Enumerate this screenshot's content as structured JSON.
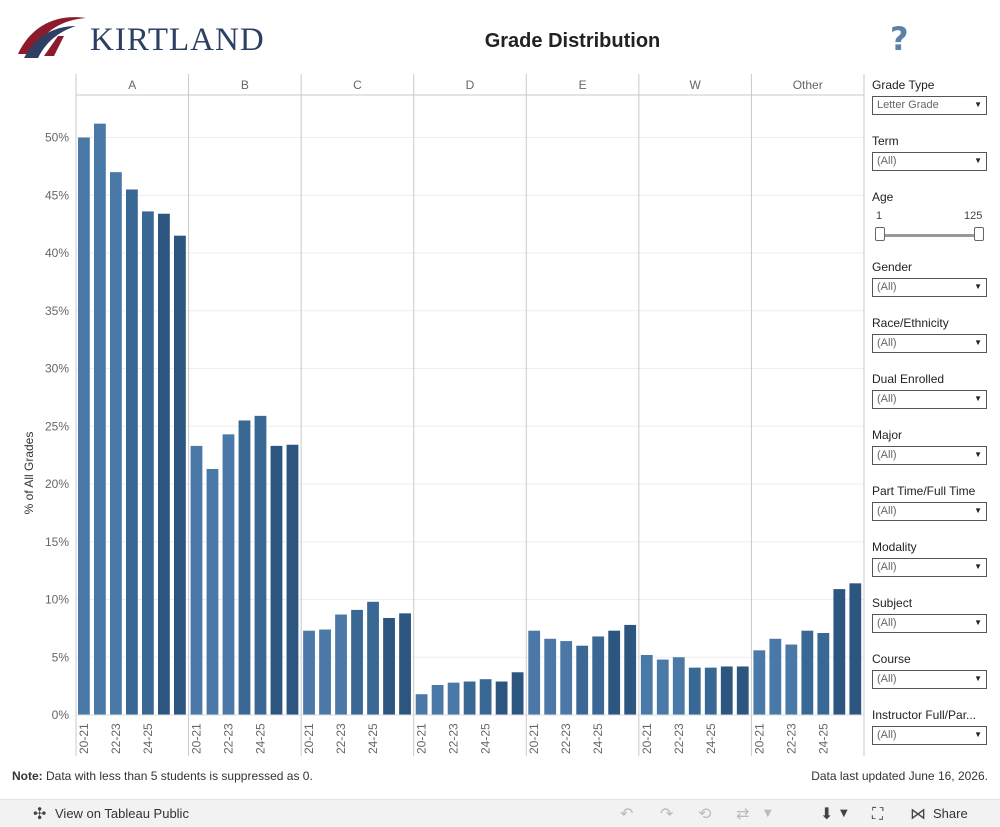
{
  "header": {
    "logo_text": "KIRTLAND",
    "title": "Grade Distribution",
    "help_symbol": "?"
  },
  "colors": {
    "bar_light": "#4a79a8",
    "bar_dark": "#2c5580",
    "grid": "#eeeeee",
    "divider": "#c9c9c9",
    "logo_red": "#8c1c2c",
    "logo_navy": "#2d3f63"
  },
  "chart_data": {
    "type": "bar",
    "ylabel": "% of All Grades",
    "ylim": [
      0,
      55
    ],
    "yticks": [
      "0%",
      "5%",
      "10%",
      "15%",
      "20%",
      "25%",
      "30%",
      "35%",
      "40%",
      "45%",
      "50%"
    ],
    "facets": [
      "A",
      "B",
      "C",
      "D",
      "E",
      "W",
      "Other"
    ],
    "x_tick_labels": [
      "20-21",
      "22-23",
      "24-25"
    ],
    "series": [
      {
        "facet": "A",
        "values": [
          50.0,
          51.2,
          47.0,
          45.5,
          43.6,
          43.4,
          41.5
        ]
      },
      {
        "facet": "B",
        "values": [
          23.3,
          21.3,
          24.3,
          25.5,
          25.9,
          23.3,
          23.4
        ]
      },
      {
        "facet": "C",
        "values": [
          7.3,
          7.4,
          8.7,
          9.1,
          9.8,
          8.4,
          8.8
        ]
      },
      {
        "facet": "D",
        "values": [
          1.8,
          2.6,
          2.8,
          2.9,
          3.1,
          2.9,
          3.7
        ]
      },
      {
        "facet": "E",
        "values": [
          7.3,
          6.6,
          6.4,
          6.0,
          6.8,
          7.3,
          7.8
        ]
      },
      {
        "facet": "W",
        "values": [
          5.2,
          4.8,
          5.0,
          4.1,
          4.1,
          4.2,
          4.2
        ]
      },
      {
        "facet": "Other",
        "values": [
          5.6,
          6.6,
          6.1,
          7.3,
          7.1,
          10.9,
          11.4
        ]
      }
    ]
  },
  "filters": {
    "grade_type": {
      "label": "Grade Type",
      "value": "Letter Grade"
    },
    "term": {
      "label": "Term",
      "value": "(All)"
    },
    "age": {
      "label": "Age",
      "min": "1",
      "max": "125"
    },
    "gender": {
      "label": "Gender",
      "value": "(All)"
    },
    "race": {
      "label": "Race/Ethnicity",
      "value": "(All)"
    },
    "dual": {
      "label": "Dual Enrolled",
      "value": "(All)"
    },
    "major": {
      "label": "Major",
      "value": "(All)"
    },
    "ptft": {
      "label": "Part Time/Full Time",
      "value": "(All)"
    },
    "modality": {
      "label": "Modality",
      "value": "(All)"
    },
    "subject": {
      "label": "Subject",
      "value": "(All)"
    },
    "course": {
      "label": "Course",
      "value": "(All)"
    },
    "instructor": {
      "label": "Instructor Full/Par...",
      "value": "(All)"
    }
  },
  "footer": {
    "note_label": "Note:",
    "note_text": " Data with less than 5 students is suppressed as 0.",
    "updated": "Data last updated June 16, 2026."
  },
  "toolbar": {
    "view_label": "View on Tableau Public",
    "share_label": "Share"
  }
}
